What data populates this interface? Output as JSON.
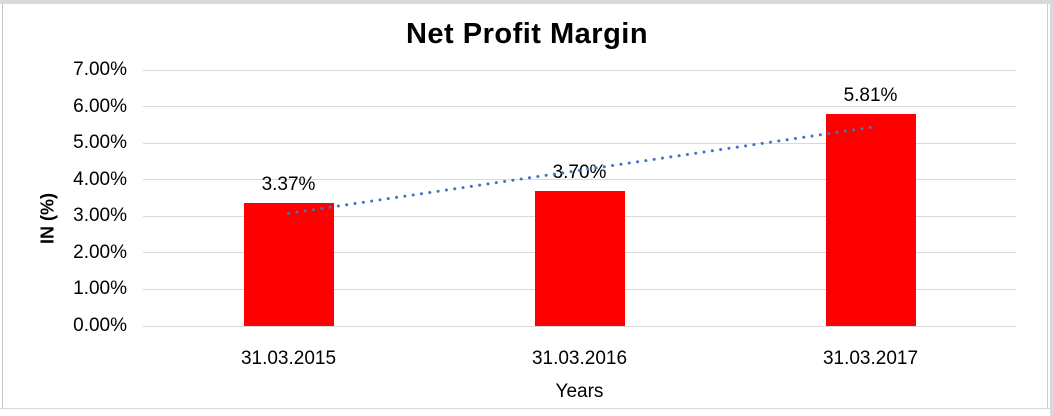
{
  "chart_data": {
    "type": "bar",
    "title": "Net Profit Margin",
    "categories": [
      "31.03.2015",
      "31.03.2016",
      "31.03.2017"
    ],
    "values": [
      3.37,
      3.7,
      5.81
    ],
    "value_labels": [
      "3.37%",
      "3.70%",
      "5.81%"
    ],
    "xlabel": "Years",
    "ylabel": "IN (%)",
    "ylim": [
      0,
      7
    ],
    "ytick_step": 1,
    "ytick_labels": [
      "0.00%",
      "1.00%",
      "2.00%",
      "3.00%",
      "4.00%",
      "5.00%",
      "6.00%",
      "7.00%"
    ],
    "grid": true,
    "legend": "none",
    "colors": {
      "bar": "#FF0000",
      "gridline": "#D9D9D9",
      "text": "#000000",
      "trendline": "#4472C4"
    },
    "trendline": {
      "style": "dotted",
      "color": "#4472C4",
      "points": [
        {
          "category": "31.03.2015",
          "value": 3.08
        },
        {
          "category": "31.03.2017",
          "value": 5.43
        }
      ]
    }
  }
}
